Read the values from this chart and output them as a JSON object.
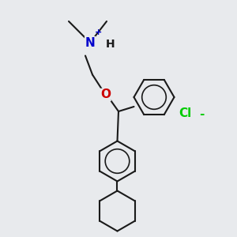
{
  "background_color": "#e8eaed",
  "line_color": "#1a1a1a",
  "nitrogen_color": "#0000cc",
  "oxygen_color": "#cc0000",
  "chlorine_color": "#00cc00",
  "plus_color": "#0000cc",
  "fig_width": 3.0,
  "fig_height": 3.0,
  "dpi": 100,
  "N_label": "N",
  "H_label": "H",
  "O_label": "O",
  "Cl_label": "Cl",
  "plus_label": "+",
  "minus_label": "-"
}
